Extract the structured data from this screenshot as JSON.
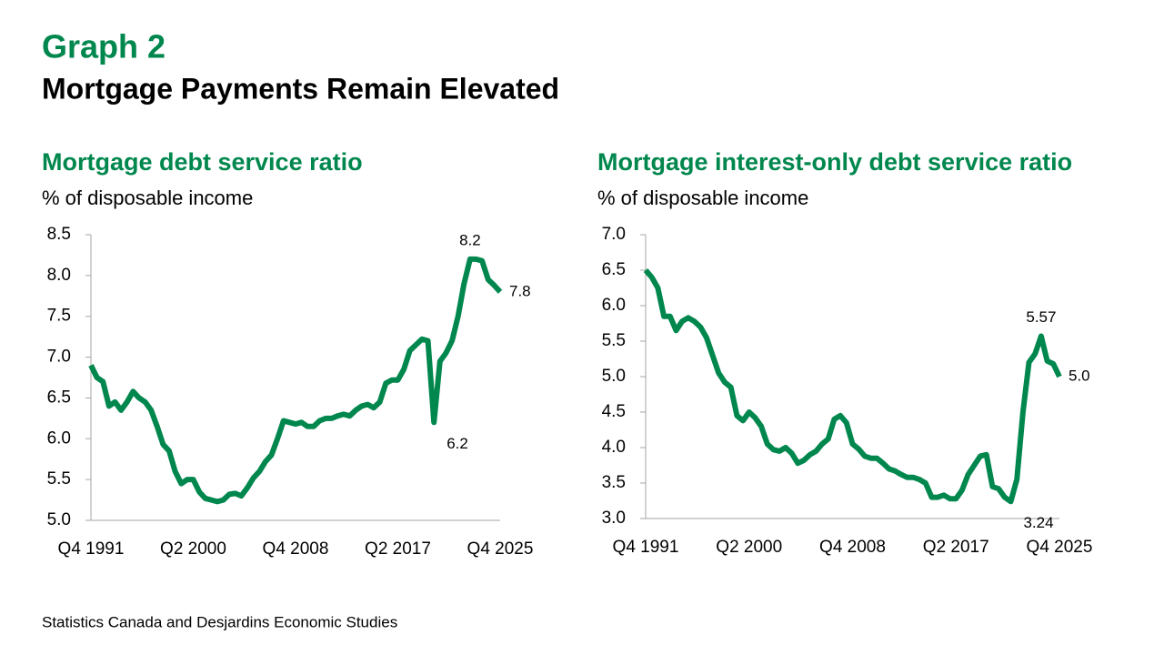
{
  "header": {
    "label": "Graph 2",
    "title": "Mortgage Payments Remain Elevated"
  },
  "source": "Statistics Canada and Desjardins Economic Studies",
  "chart_data": [
    {
      "type": "line",
      "title": "Mortgage debt service ratio",
      "ylabel": "% of disposable income",
      "categories": [
        "Q4 1991",
        null,
        null,
        null,
        null,
        null,
        null,
        null,
        null,
        null,
        null,
        null,
        null,
        null,
        null,
        null,
        null,
        "Q2 2000",
        null,
        null,
        null,
        null,
        null,
        null,
        null,
        null,
        null,
        null,
        null,
        null,
        null,
        null,
        null,
        null,
        "Q4 2008",
        null,
        null,
        null,
        null,
        null,
        null,
        null,
        null,
        null,
        null,
        null,
        null,
        null,
        null,
        null,
        null,
        "Q2 2017",
        null,
        null,
        null,
        null,
        null,
        null,
        null,
        null,
        null,
        null,
        null,
        null,
        null,
        null,
        null,
        null,
        "Q4 2025"
      ],
      "series": [
        {
          "name": "Mortgage debt service ratio",
          "color": "#00874e",
          "values": [
            6.9,
            6.75,
            6.7,
            6.4,
            6.45,
            6.35,
            6.45,
            6.58,
            6.5,
            6.45,
            6.35,
            6.15,
            5.93,
            5.85,
            5.6,
            5.45,
            5.5,
            5.5,
            5.35,
            5.27,
            5.25,
            5.23,
            5.25,
            5.32,
            5.33,
            5.3,
            5.4,
            5.52,
            5.6,
            5.72,
            5.8,
            6.0,
            6.22,
            6.2,
            6.18,
            6.2,
            6.15,
            6.15,
            6.22,
            6.25,
            6.25,
            6.28,
            6.3,
            6.28,
            6.35,
            6.4,
            6.42,
            6.38,
            6.45,
            6.68,
            6.72,
            6.72,
            6.85,
            7.08,
            7.15,
            7.22,
            7.2,
            6.2,
            6.95,
            7.05,
            7.2,
            7.5,
            7.9,
            8.2,
            8.2,
            8.18,
            7.95,
            7.88,
            7.8
          ],
          "value_labels": [
            null,
            null,
            null,
            null,
            null,
            null,
            null,
            null,
            null,
            null,
            null,
            null,
            null,
            null,
            null,
            null,
            null,
            null,
            null,
            null,
            null,
            null,
            null,
            null,
            null,
            null,
            null,
            null,
            null,
            null,
            null,
            null,
            null,
            null,
            null,
            null,
            null,
            null,
            null,
            null,
            null,
            null,
            null,
            null,
            null,
            null,
            null,
            null,
            null,
            null,
            null,
            null,
            null,
            null,
            null,
            null,
            null,
            "6.2",
            null,
            null,
            null,
            null,
            null,
            "8.2",
            null,
            null,
            null,
            null,
            "7.8"
          ]
        }
      ],
      "ylim": [
        5,
        8.5
      ],
      "yticks": [
        {
          "value": 5,
          "label": "5.0"
        },
        5.5,
        {
          "value": 6,
          "label": "6.0"
        },
        6.5,
        {
          "value": 7,
          "label": "7.0"
        },
        7.5,
        {
          "value": 8,
          "label": "8.0"
        },
        8.5
      ]
    },
    {
      "type": "line",
      "title": "Mortgage interest-only debt service ratio",
      "ylabel": "% of disposable income",
      "categories": [
        "Q4 1991",
        null,
        null,
        null,
        null,
        null,
        null,
        null,
        null,
        null,
        null,
        null,
        null,
        null,
        null,
        null,
        null,
        "Q2 2000",
        null,
        null,
        null,
        null,
        null,
        null,
        null,
        null,
        null,
        null,
        null,
        null,
        null,
        null,
        null,
        null,
        "Q4 2008",
        null,
        null,
        null,
        null,
        null,
        null,
        null,
        null,
        null,
        null,
        null,
        null,
        null,
        null,
        null,
        null,
        "Q2 2017",
        null,
        null,
        null,
        null,
        null,
        null,
        null,
        null,
        null,
        null,
        null,
        null,
        null,
        null,
        null,
        null,
        "Q4 2025"
      ],
      "series": [
        {
          "name": "Mortgage interest-only debt service ratio",
          "color": "#00874e",
          "values": [
            6.5,
            6.4,
            6.25,
            5.85,
            5.85,
            5.65,
            5.78,
            5.83,
            5.78,
            5.7,
            5.55,
            5.3,
            5.05,
            4.92,
            4.85,
            4.45,
            4.38,
            4.5,
            4.42,
            4.3,
            4.05,
            3.97,
            3.95,
            4.0,
            3.92,
            3.78,
            3.82,
            3.9,
            3.95,
            4.05,
            4.12,
            4.4,
            4.45,
            4.35,
            4.05,
            3.98,
            3.88,
            3.85,
            3.85,
            3.78,
            3.7,
            3.67,
            3.62,
            3.58,
            3.58,
            3.55,
            3.5,
            3.3,
            3.3,
            3.33,
            3.28,
            3.28,
            3.4,
            3.62,
            3.75,
            3.88,
            3.9,
            3.45,
            3.42,
            3.3,
            3.24,
            3.55,
            4.5,
            5.2,
            5.32,
            5.57,
            5.22,
            5.18,
            5.0
          ],
          "value_labels": [
            null,
            null,
            null,
            null,
            null,
            null,
            null,
            null,
            null,
            null,
            null,
            null,
            null,
            null,
            null,
            null,
            null,
            null,
            null,
            null,
            null,
            null,
            null,
            null,
            null,
            null,
            null,
            null,
            null,
            null,
            null,
            null,
            null,
            null,
            null,
            null,
            null,
            null,
            null,
            null,
            null,
            null,
            null,
            null,
            null,
            null,
            null,
            null,
            null,
            null,
            null,
            null,
            null,
            null,
            null,
            null,
            null,
            null,
            null,
            null,
            "3.24",
            null,
            null,
            null,
            null,
            "5.57",
            null,
            null,
            "5.0"
          ]
        }
      ],
      "ylim": [
        3,
        7
      ],
      "yticks": [
        {
          "value": 3,
          "label": "3.0"
        },
        3.5,
        {
          "value": 4,
          "label": "4.0"
        },
        4.5,
        {
          "value": 5,
          "label": "5.0"
        },
        5.5,
        {
          "value": 6,
          "label": "6.0"
        },
        6.5,
        {
          "value": 7,
          "label": "7.0"
        }
      ]
    }
  ]
}
